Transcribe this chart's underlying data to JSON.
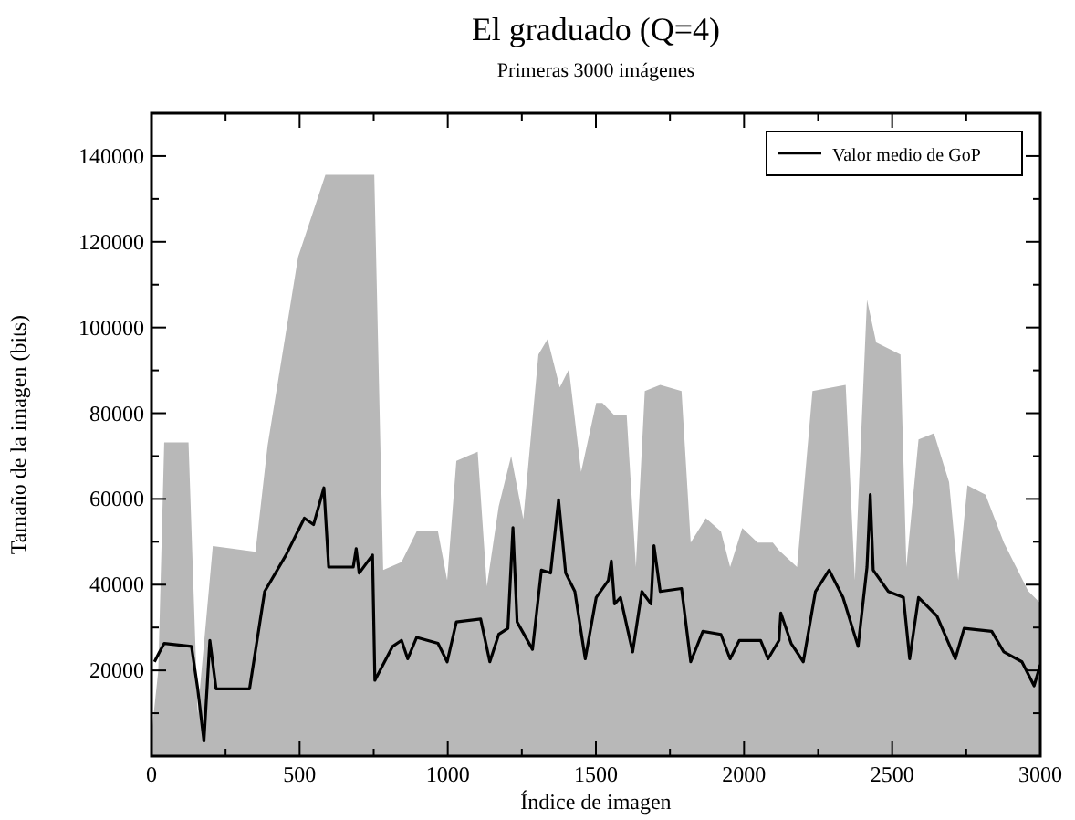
{
  "chart_data": {
    "type": "line",
    "title": "El graduado (Q=4)",
    "subtitle": "Primeras 3000 imágenes",
    "xlabel": "Índice de imagen",
    "ylabel": "Tamaño de la imagen (bits)",
    "xlim": [
      0,
      3000
    ],
    "ylim": [
      0,
      150000
    ],
    "xticks": [
      0,
      {
        "value": 250,
        "label": null
      },
      500,
      {
        "value": 750,
        "label": null
      },
      1000,
      {
        "value": 1250,
        "label": null
      },
      1500,
      {
        "value": 1750,
        "label": null
      },
      2000,
      {
        "value": 2250,
        "label": null
      },
      2500,
      {
        "value": 2750,
        "label": null
      },
      3000
    ],
    "yticks": [
      {
        "value": 10000,
        "label": null
      },
      20000,
      {
        "value": 30000,
        "label": null
      },
      40000,
      {
        "value": 50000,
        "label": null
      },
      60000,
      {
        "value": 70000,
        "label": null
      },
      80000,
      {
        "value": 90000,
        "label": null
      },
      100000,
      {
        "value": 110000,
        "label": null
      },
      120000,
      {
        "value": 130000,
        "label": null
      },
      140000
    ],
    "grid": false,
    "legend": "top right",
    "series": [
      {
        "type": "area",
        "color": "#b8b8b8",
        "x": [
          0,
          23,
          43,
          125,
          156,
          207,
          351,
          392,
          495,
          587,
          752,
          782,
          844,
          895,
          967,
          998,
          1029,
          1101,
          1132,
          1172,
          1214,
          1255,
          1306,
          1337,
          1378,
          1409,
          1450,
          1501,
          1522,
          1563,
          1604,
          1635,
          1665,
          1717,
          1789,
          1820,
          1871,
          1922,
          1953,
          1994,
          2046,
          2097,
          2118,
          2179,
          2231,
          2343,
          2374,
          2415,
          2446,
          2528,
          2548,
          2589,
          2641,
          2692,
          2723,
          2754,
          2815,
          2877,
          2959,
          3000
        ],
        "values": [
          5000,
          20000,
          73200,
          73200,
          10000,
          49000,
          47700,
          72500,
          116500,
          135600,
          135600,
          43400,
          45300,
          52400,
          52400,
          41000,
          68900,
          71000,
          39600,
          58300,
          70000,
          55300,
          93700,
          97300,
          86000,
          90300,
          66300,
          82400,
          82400,
          79500,
          79500,
          44100,
          85200,
          86600,
          85200,
          49800,
          55500,
          52400,
          44100,
          53200,
          49800,
          49800,
          48000,
          44100,
          85200,
          86600,
          41000,
          106500,
          96500,
          93700,
          44100,
          73900,
          75300,
          63900,
          41000,
          63200,
          61000,
          49800,
          38500,
          35700
        ]
      },
      {
        "name": "Valor medio de GoP",
        "color": "#000000",
        "x": [
          10,
          27,
          43,
          135,
          156,
          177,
          197,
          218,
          331,
          382,
          454,
          516,
          547,
          582,
          598,
          681,
          691,
          701,
          746,
          754,
          814,
          844,
          865,
          895,
          967,
          998,
          1029,
          1111,
          1142,
          1172,
          1203,
          1220,
          1234,
          1286,
          1316,
          1347,
          1374,
          1398,
          1429,
          1464,
          1501,
          1542,
          1552,
          1563,
          1583,
          1624,
          1655,
          1686,
          1696,
          1717,
          1789,
          1820,
          1861,
          1922,
          1953,
          1984,
          2056,
          2081,
          2118,
          2124,
          2159,
          2200,
          2241,
          2287,
          2334,
          2385,
          2415,
          2426,
          2436,
          2487,
          2538,
          2559,
          2589,
          2651,
          2713,
          2743,
          2836,
          2877,
          2938,
          2979,
          3000
        ],
        "values": [
          22000,
          24300,
          26300,
          25600,
          15700,
          3500,
          27000,
          15700,
          15700,
          38400,
          46900,
          55500,
          54000,
          62600,
          44100,
          44100,
          48400,
          42700,
          46900,
          17700,
          25600,
          27000,
          22700,
          27700,
          26300,
          22000,
          31300,
          32000,
          22000,
          28400,
          29800,
          53300,
          31300,
          24900,
          43400,
          42700,
          59800,
          42700,
          38400,
          22700,
          37000,
          41000,
          45500,
          35500,
          37000,
          24300,
          38400,
          35500,
          49100,
          38400,
          39100,
          22000,
          29100,
          28400,
          22700,
          27000,
          27000,
          22700,
          27000,
          33400,
          26300,
          22000,
          38400,
          43400,
          37000,
          25600,
          44100,
          61000,
          43400,
          38400,
          37000,
          22700,
          37000,
          32700,
          22700,
          29800,
          29100,
          24300,
          22000,
          16400,
          21300
        ]
      }
    ]
  }
}
